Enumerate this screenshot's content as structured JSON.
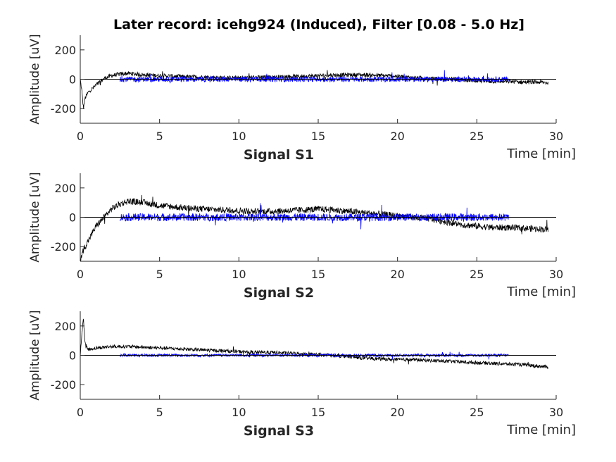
{
  "chart_data": {
    "title": "Later record: icehg924 (Induced), Filter [0.08 - 5.0 Hz]",
    "type": "line",
    "grid": false,
    "colors": {
      "black_series": "#000000",
      "blue_series": "#0000ff",
      "zero_line": "#000000"
    },
    "panels": [
      {
        "subtitle": "Signal S1",
        "xlabel": "Time [min]",
        "ylabel": "Amplitude [uV]",
        "xlim": [
          0,
          30
        ],
        "ylim": [
          -300,
          300
        ],
        "xticks": [
          0,
          5,
          10,
          15,
          20,
          25,
          30
        ],
        "yticks": [
          -200,
          0,
          200
        ],
        "series": [
          {
            "color": "#000000",
            "x": [
              0,
              0.1,
              0.2,
              0.3,
              0.5,
              0.8,
              1.2,
              1.6,
              2,
              2.5,
              3,
              4,
              5,
              6,
              7,
              8,
              9,
              10,
              11,
              12,
              13,
              14,
              15,
              16,
              17,
              18,
              19,
              20,
              21,
              22,
              23,
              24,
              25,
              26,
              27,
              28,
              29,
              29.5
            ],
            "y": [
              0,
              -80,
              -200,
              -130,
              -90,
              -60,
              -20,
              10,
              25,
              35,
              40,
              30,
              25,
              20,
              15,
              15,
              10,
              10,
              12,
              15,
              18,
              20,
              25,
              28,
              30,
              30,
              25,
              20,
              10,
              5,
              0,
              -5,
              -10,
              -15,
              -15,
              -20,
              -20,
              -25
            ],
            "noise": 14
          },
          {
            "color": "#0000ff",
            "x": [
              2.5,
              5,
              10,
              15,
              20,
              25,
              27
            ],
            "y": [
              0,
              0,
              0,
              0,
              0,
              0,
              0
            ],
            "noise": 18
          }
        ]
      },
      {
        "subtitle": "Signal S2",
        "xlabel": "Time [min]",
        "ylabel": "Amplitude [uV]",
        "xlim": [
          0,
          30
        ],
        "ylim": [
          -300,
          300
        ],
        "xticks": [
          0,
          5,
          10,
          15,
          20,
          25,
          30
        ],
        "yticks": [
          -200,
          0,
          200
        ],
        "series": [
          {
            "color": "#000000",
            "x": [
              0,
              0.1,
              0.2,
              0.4,
              0.7,
              1,
              1.5,
              2,
              2.5,
              3,
              4,
              5,
              6,
              7,
              8,
              9,
              10,
              11,
              12,
              13,
              14,
              15,
              16,
              17,
              18,
              19,
              20,
              21,
              22,
              23,
              24,
              25,
              26,
              27,
              28,
              29,
              29.5
            ],
            "y": [
              -300,
              -260,
              -220,
              -180,
              -120,
              -60,
              0,
              60,
              90,
              110,
              100,
              80,
              70,
              60,
              55,
              50,
              45,
              40,
              40,
              45,
              50,
              55,
              50,
              40,
              30,
              20,
              10,
              0,
              -10,
              -30,
              -50,
              -60,
              -70,
              -70,
              -75,
              -80,
              -85
            ],
            "noise": 22
          },
          {
            "color": "#0000ff",
            "x": [
              2.5,
              5,
              10,
              15,
              18,
              20,
              25,
              27
            ],
            "y": [
              0,
              0,
              0,
              0,
              0,
              0,
              0,
              0
            ],
            "noise": 26
          }
        ]
      },
      {
        "subtitle": "Signal S3",
        "xlabel": "Time [min]",
        "ylabel": "Amplitude [uV]",
        "xlim": [
          0,
          30
        ],
        "ylim": [
          -300,
          300
        ],
        "xticks": [
          0,
          5,
          10,
          15,
          20,
          25,
          30
        ],
        "yticks": [
          -200,
          0,
          200
        ],
        "series": [
          {
            "color": "#000000",
            "x": [
              0,
              0.1,
              0.2,
              0.3,
              0.5,
              1,
              2,
              3,
              4,
              5,
              6,
              7,
              8,
              9,
              10,
              11,
              12,
              13,
              14,
              15,
              16,
              17,
              18,
              19,
              20,
              21,
              22,
              23,
              24,
              25,
              26,
              27,
              28,
              29,
              29.5
            ],
            "y": [
              0,
              150,
              250,
              80,
              40,
              50,
              60,
              60,
              55,
              50,
              45,
              40,
              35,
              30,
              25,
              20,
              20,
              15,
              10,
              5,
              0,
              -10,
              -20,
              -25,
              -30,
              -30,
              -35,
              -40,
              -45,
              -50,
              -55,
              -60,
              -65,
              -75,
              -80
            ],
            "noise": 12
          },
          {
            "color": "#0000ff",
            "x": [
              2.5,
              5,
              10,
              15,
              20,
              25,
              27
            ],
            "y": [
              0,
              0,
              0,
              0,
              0,
              0,
              0
            ],
            "noise": 10
          }
        ]
      }
    ]
  }
}
